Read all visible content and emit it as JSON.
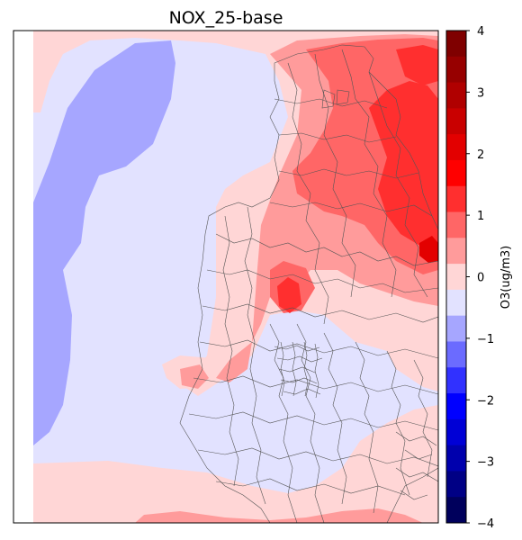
{
  "title": "NOX_25-base",
  "colorbar": {
    "label": "O3(ug/m3)",
    "min": -4,
    "max": 4,
    "ticks": [
      "4",
      "3",
      "2",
      "1",
      "0",
      "−1",
      "−2",
      "−3",
      "−4"
    ],
    "colors_top_to_bottom": [
      "#7f0000",
      "#970000",
      "#b00000",
      "#c90000",
      "#e30000",
      "#ff0000",
      "#ff2f2f",
      "#ff6666",
      "#ff9b9b",
      "#ffd6d6",
      "#e2e2ff",
      "#a6a6ff",
      "#6b6bff",
      "#3131ff",
      "#0000ff",
      "#0000d6",
      "#0000ad",
      "#000085",
      "#00005c"
    ]
  },
  "map": {
    "background_color": "#e2e2ff",
    "districts_stroke": "#555555"
  }
}
